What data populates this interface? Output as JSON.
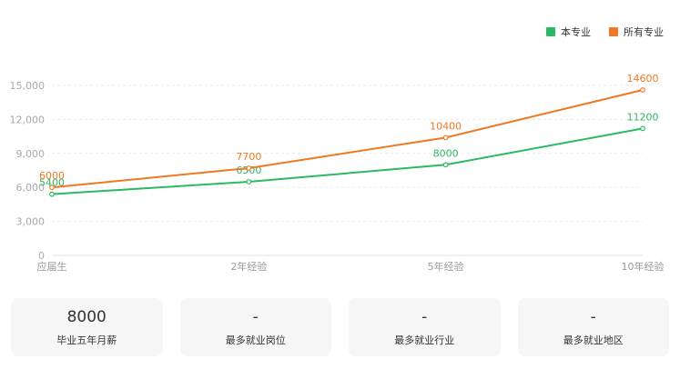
{
  "legend": {
    "items": [
      {
        "label": "本专业",
        "color": "#2db863"
      },
      {
        "label": "所有专业",
        "color": "#f07822"
      }
    ]
  },
  "chart_data": {
    "type": "line",
    "categories": [
      "应届生",
      "2年经验",
      "5年经验",
      "10年经验"
    ],
    "series": [
      {
        "name": "本专业",
        "color": "#2db863",
        "values": [
          5400,
          6500,
          8000,
          11200
        ]
      },
      {
        "name": "所有专业",
        "color": "#f07822",
        "values": [
          6000,
          7700,
          10400,
          14600
        ]
      }
    ],
    "ylim": [
      0,
      15000
    ],
    "yticks": [
      0,
      3000,
      6000,
      9000,
      12000,
      15000
    ],
    "ytick_labels": [
      "0",
      "3,000",
      "6,000",
      "9,000",
      "12,000",
      "15,000"
    ],
    "grid": true,
    "legend_position": "top-right",
    "title": "",
    "xlabel": "",
    "ylabel": ""
  },
  "cards": [
    {
      "value": "8000",
      "label": "毕业五年月薪"
    },
    {
      "value": "-",
      "label": "最多就业岗位"
    },
    {
      "value": "-",
      "label": "最多就业行业"
    },
    {
      "value": "-",
      "label": "最多就业地区"
    }
  ]
}
